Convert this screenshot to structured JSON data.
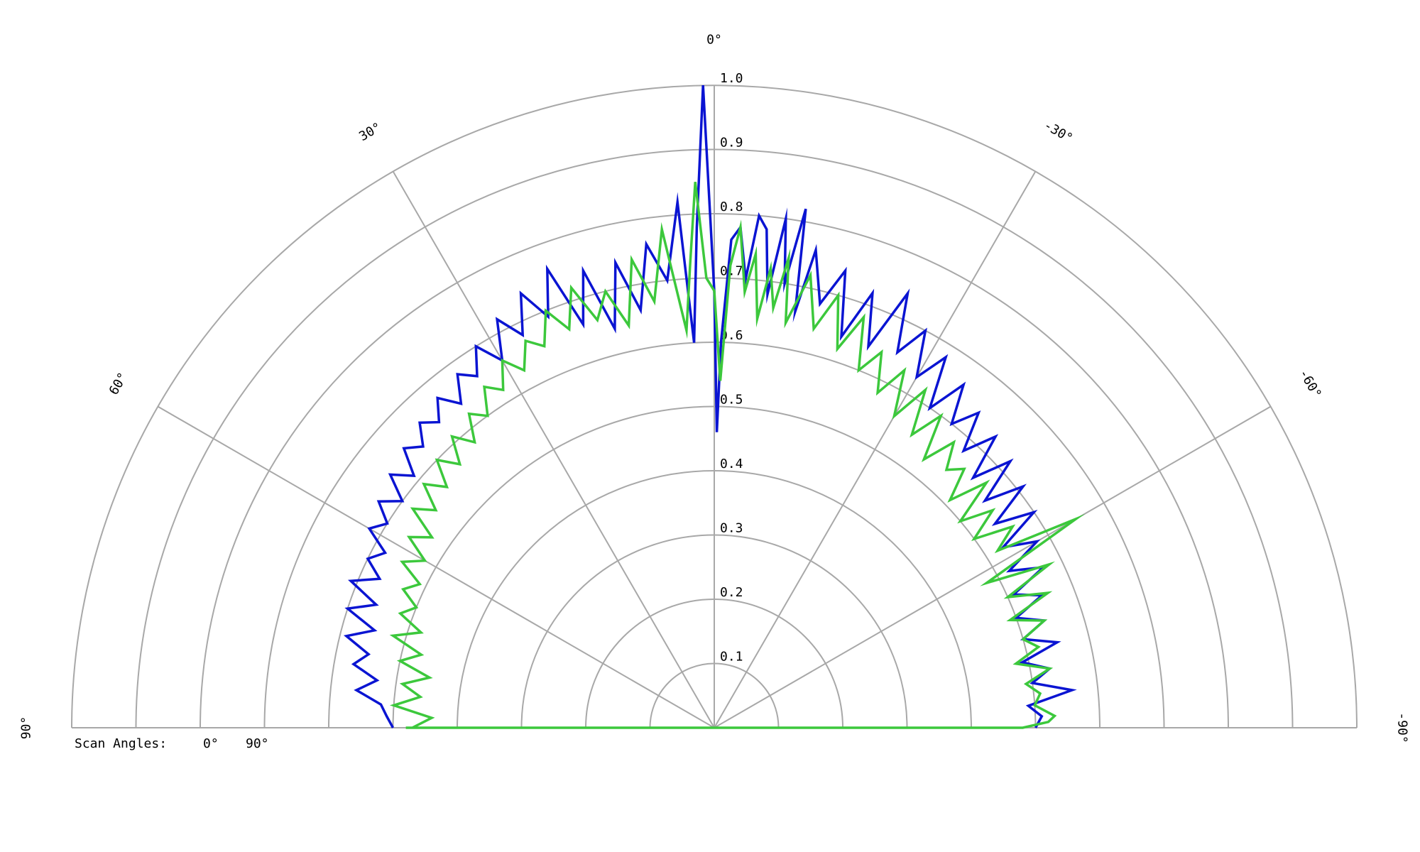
{
  "chart_data": {
    "type": "polar-line",
    "angle_range": [
      -90,
      90
    ],
    "radial_range": [
      0,
      1.0
    ],
    "radial_ticks": [
      0.1,
      0.2,
      0.3,
      0.4,
      0.5,
      0.6,
      0.7,
      0.8,
      0.9,
      1.0
    ],
    "radial_tick_labels": [
      "0.1",
      "0.2",
      "0.3",
      "0.4",
      "0.5",
      "0.6",
      "0.7",
      "0.8",
      "0.9",
      "1.0"
    ],
    "angle_ticks": [
      90,
      60,
      30,
      0,
      -30,
      -60,
      -90
    ],
    "angle_tick_labels": [
      "90°",
      "60°",
      "30°",
      "0°",
      "-30°",
      "-60°",
      "-90°"
    ],
    "grid": true,
    "legend": {
      "title": "Scan Angles:",
      "placement": "bottom-left"
    },
    "series": [
      {
        "name": "0°",
        "color": "#0a14d2",
        "points": [
          [
            90,
            0.5
          ],
          [
            88,
            0.51
          ],
          [
            86,
            0.52
          ],
          [
            84,
            0.56
          ],
          [
            82,
            0.53
          ],
          [
            80,
            0.57
          ],
          [
            78,
            0.55
          ],
          [
            76,
            0.59
          ],
          [
            74,
            0.55
          ],
          [
            72,
            0.6
          ],
          [
            70,
            0.56
          ],
          [
            68,
            0.61
          ],
          [
            66,
            0.57
          ],
          [
            64,
            0.6
          ],
          [
            62,
            0.58
          ],
          [
            60,
            0.62
          ],
          [
            58,
            0.6
          ],
          [
            56,
            0.63
          ],
          [
            54,
            0.6
          ],
          [
            52,
            0.64
          ],
          [
            50,
            0.61
          ],
          [
            48,
            0.65
          ],
          [
            46,
            0.63
          ],
          [
            44,
            0.66
          ],
          [
            42,
            0.64
          ],
          [
            40,
            0.67
          ],
          [
            38,
            0.64
          ],
          [
            36,
            0.68
          ],
          [
            34,
            0.66
          ],
          [
            32,
            0.7
          ],
          [
            30,
            0.66
          ],
          [
            28,
            0.72
          ],
          [
            26,
            0.68
          ],
          [
            24,
            0.74
          ],
          [
            22,
            0.69
          ],
          [
            20,
            0.76
          ],
          [
            18,
            0.66
          ],
          [
            16,
            0.74
          ],
          [
            14,
            0.64
          ],
          [
            12,
            0.74
          ],
          [
            10,
            0.66
          ],
          [
            8,
            0.76
          ],
          [
            6,
            0.7
          ],
          [
            4,
            0.82
          ],
          [
            3,
            0.6
          ],
          [
            2,
            0.78
          ],
          [
            1,
            1.0
          ],
          [
            0,
            0.68
          ],
          [
            -0.5,
            0.46
          ],
          [
            -1,
            0.6
          ],
          [
            -2,
            0.76
          ],
          [
            -3,
            0.78
          ],
          [
            -4,
            0.7
          ],
          [
            -5,
            0.8
          ],
          [
            -6,
            0.78
          ],
          [
            -7,
            0.68
          ],
          [
            -8,
            0.8
          ],
          [
            -9,
            0.7
          ],
          [
            -10,
            0.82
          ],
          [
            -11,
            0.66
          ],
          [
            -12,
            0.76
          ],
          [
            -14,
            0.68
          ],
          [
            -16,
            0.74
          ],
          [
            -18,
            0.64
          ],
          [
            -20,
            0.72
          ],
          [
            -22,
            0.64
          ],
          [
            -24,
            0.74
          ],
          [
            -26,
            0.65
          ],
          [
            -28,
            0.7
          ],
          [
            -30,
            0.63
          ],
          [
            -32,
            0.68
          ],
          [
            -34,
            0.6
          ],
          [
            -36,
            0.66
          ],
          [
            -38,
            0.6
          ],
          [
            -40,
            0.64
          ],
          [
            -42,
            0.58
          ],
          [
            -44,
            0.63
          ],
          [
            -46,
            0.56
          ],
          [
            -48,
            0.62
          ],
          [
            -50,
            0.55
          ],
          [
            -52,
            0.61
          ],
          [
            -54,
            0.54
          ],
          [
            -56,
            0.6
          ],
          [
            -58,
            0.53
          ],
          [
            -60,
            0.58
          ],
          [
            -62,
            0.52
          ],
          [
            -64,
            0.57
          ],
          [
            -66,
            0.51
          ],
          [
            -68,
            0.55
          ],
          [
            -70,
            0.5
          ],
          [
            -72,
            0.54
          ],
          [
            -74,
            0.5
          ],
          [
            -76,
            0.55
          ],
          [
            -78,
            0.49
          ],
          [
            -80,
            0.53
          ],
          [
            -82,
            0.5
          ],
          [
            -84,
            0.56
          ],
          [
            -86,
            0.49
          ],
          [
            -88,
            0.51
          ],
          [
            -90,
            0.5
          ]
        ]
      },
      {
        "name": "90°",
        "color": "#3cc83c",
        "points": [
          [
            90,
            0.47
          ],
          [
            88,
            0.44
          ],
          [
            86,
            0.5
          ],
          [
            84,
            0.46
          ],
          [
            82,
            0.49
          ],
          [
            80,
            0.45
          ],
          [
            78,
            0.5
          ],
          [
            76,
            0.47
          ],
          [
            74,
            0.52
          ],
          [
            72,
            0.48
          ],
          [
            70,
            0.52
          ],
          [
            68,
            0.5
          ],
          [
            66,
            0.53
          ],
          [
            64,
            0.51
          ],
          [
            62,
            0.55
          ],
          [
            60,
            0.52
          ],
          [
            58,
            0.56
          ],
          [
            56,
            0.53
          ],
          [
            54,
            0.58
          ],
          [
            52,
            0.55
          ],
          [
            50,
            0.59
          ],
          [
            48,
            0.56
          ],
          [
            46,
            0.6
          ],
          [
            44,
            0.57
          ],
          [
            42,
            0.61
          ],
          [
            40,
            0.58
          ],
          [
            38,
            0.62
          ],
          [
            36,
            0.6
          ],
          [
            34,
            0.64
          ],
          [
            32,
            0.62
          ],
          [
            30,
            0.66
          ],
          [
            28,
            0.63
          ],
          [
            26,
            0.67
          ],
          [
            24,
            0.65
          ],
          [
            22,
            0.7
          ],
          [
            20,
            0.66
          ],
          [
            18,
            0.72
          ],
          [
            16,
            0.66
          ],
          [
            14,
            0.7
          ],
          [
            12,
            0.64
          ],
          [
            10,
            0.74
          ],
          [
            8,
            0.67
          ],
          [
            6,
            0.78
          ],
          [
            4,
            0.62
          ],
          [
            3,
            0.72
          ],
          [
            2,
            0.85
          ],
          [
            1,
            0.7
          ],
          [
            0,
            0.68
          ],
          [
            -1,
            0.54
          ],
          [
            -2,
            0.72
          ],
          [
            -3,
            0.78
          ],
          [
            -4,
            0.68
          ],
          [
            -5,
            0.74
          ],
          [
            -6,
            0.64
          ],
          [
            -7,
            0.72
          ],
          [
            -8,
            0.66
          ],
          [
            -9,
            0.74
          ],
          [
            -10,
            0.64
          ],
          [
            -12,
            0.72
          ],
          [
            -14,
            0.64
          ],
          [
            -16,
            0.7
          ],
          [
            -18,
            0.62
          ],
          [
            -20,
            0.68
          ],
          [
            -22,
            0.6
          ],
          [
            -24,
            0.64
          ],
          [
            -26,
            0.58
          ],
          [
            -28,
            0.63
          ],
          [
            -30,
            0.56
          ],
          [
            -32,
            0.62
          ],
          [
            -34,
            0.55
          ],
          [
            -36,
            0.6
          ],
          [
            -38,
            0.53
          ],
          [
            -40,
            0.58
          ],
          [
            -42,
            0.54
          ],
          [
            -44,
            0.56
          ],
          [
            -46,
            0.51
          ],
          [
            -48,
            0.57
          ],
          [
            -50,
            0.5
          ],
          [
            -52,
            0.55
          ],
          [
            -54,
            0.5
          ],
          [
            -56,
            0.56
          ],
          [
            -58,
            0.52
          ],
          [
            -60,
            0.65
          ],
          [
            -62,
            0.48
          ],
          [
            -64,
            0.58
          ],
          [
            -66,
            0.5
          ],
          [
            -68,
            0.56
          ],
          [
            -70,
            0.49
          ],
          [
            -72,
            0.54
          ],
          [
            -74,
            0.5
          ],
          [
            -76,
            0.52
          ],
          [
            -78,
            0.48
          ],
          [
            -80,
            0.53
          ],
          [
            -82,
            0.49
          ],
          [
            -84,
            0.51
          ],
          [
            -86,
            0.5
          ],
          [
            -88,
            0.53
          ],
          [
            -89,
            0.52
          ],
          [
            -90,
            0.48
          ],
          [
            90,
            0.48
          ]
        ]
      }
    ]
  }
}
